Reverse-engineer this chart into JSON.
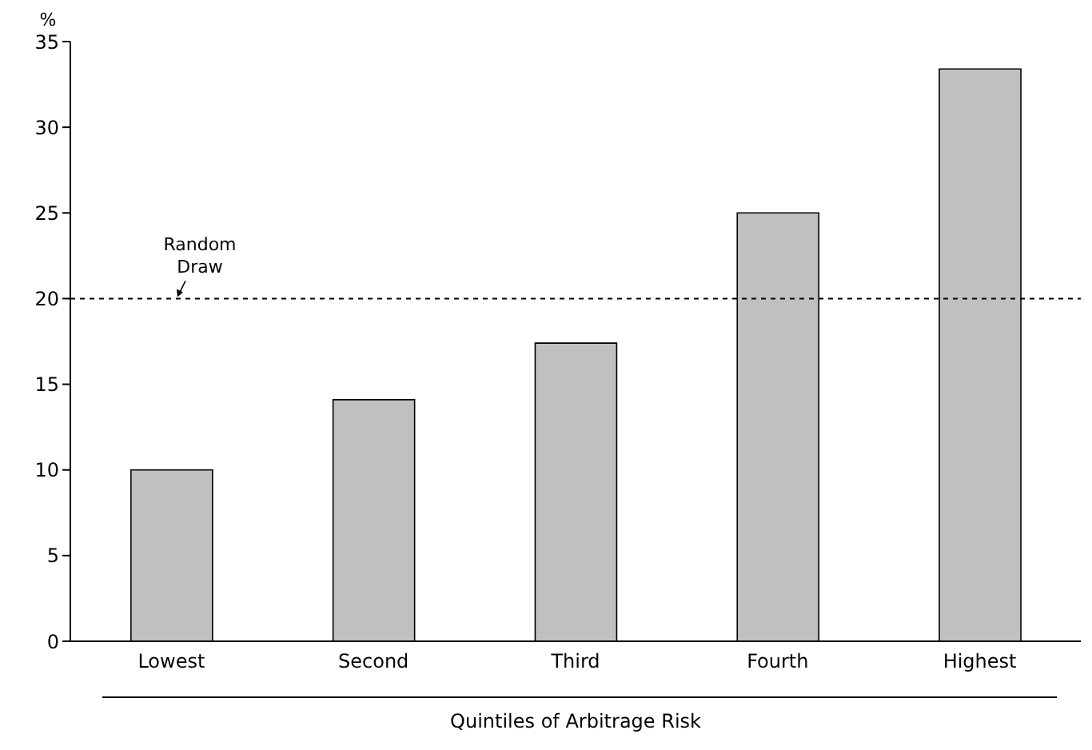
{
  "chart_data": {
    "type": "bar",
    "xlabel": "Quintiles of Arbitrage Risk",
    "ylabel": "%",
    "categories": [
      "Lowest",
      "Second",
      "Third",
      "Fourth",
      "Highest"
    ],
    "values": [
      10.0,
      14.1,
      17.4,
      25.0,
      33.4
    ],
    "color": "#c0c0c0",
    "ylim": [
      0,
      35
    ],
    "yticks": [
      0,
      5,
      10,
      15,
      20,
      25,
      30,
      35
    ],
    "grid": false,
    "legend": false,
    "ref_lines": [
      {
        "axis": "y",
        "value": 20,
        "label": "Random Draw",
        "color": "#000000",
        "line_style": "dashed"
      }
    ]
  }
}
